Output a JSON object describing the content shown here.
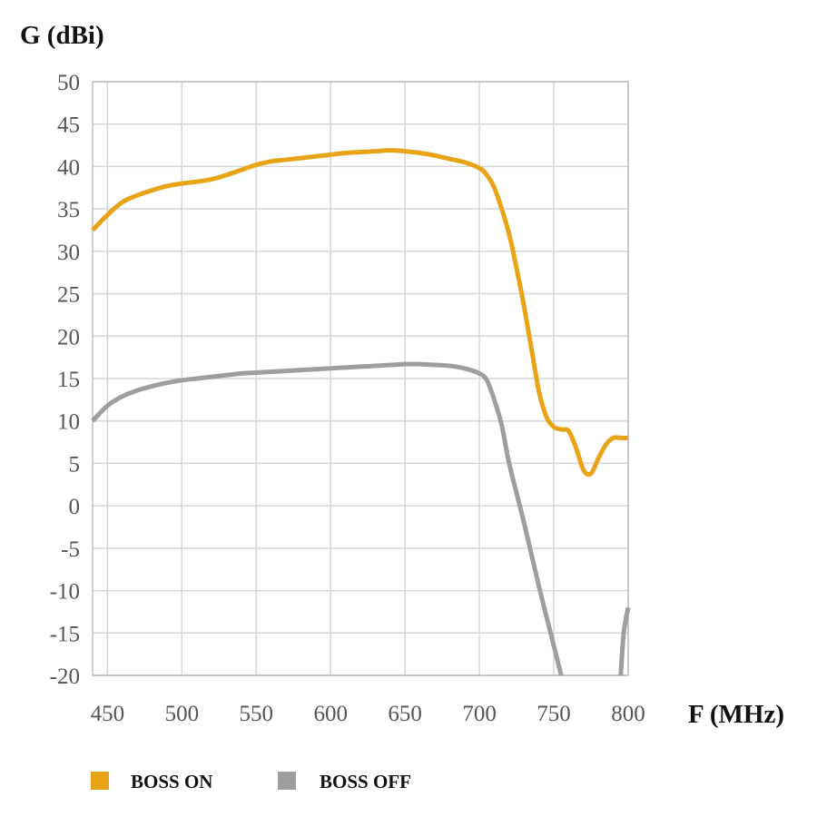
{
  "chart_data": {
    "type": "line",
    "title": "",
    "ylabel": "G (dBi)",
    "xlabel": "F (MHz)",
    "xlim": [
      440,
      800
    ],
    "ylim": [
      -20,
      50
    ],
    "x_ticks": [
      "450",
      "500",
      "550",
      "600",
      "650",
      "700",
      "750",
      "800"
    ],
    "y_ticks": [
      "50",
      "45",
      "40",
      "35",
      "30",
      "25",
      "20",
      "15",
      "10",
      "5",
      "0",
      "-5",
      "-10",
      "-15",
      "-20"
    ],
    "grid": true,
    "legend_position": "bottom",
    "series": [
      {
        "name": "BOSS ON",
        "color": "#E8A317",
        "x": [
          440,
          450,
          460,
          470,
          480,
          490,
          500,
          510,
          520,
          530,
          540,
          550,
          560,
          570,
          580,
          590,
          600,
          610,
          620,
          630,
          640,
          650,
          660,
          670,
          680,
          690,
          700,
          705,
          710,
          715,
          720,
          725,
          730,
          735,
          740,
          745,
          750,
          755,
          760,
          765,
          770,
          775,
          780,
          785,
          790,
          795,
          800
        ],
        "y": [
          32.5,
          34.3,
          35.8,
          36.6,
          37.2,
          37.7,
          38.0,
          38.2,
          38.5,
          39.0,
          39.6,
          40.2,
          40.6,
          40.8,
          41.0,
          41.2,
          41.4,
          41.6,
          41.7,
          41.8,
          41.9,
          41.8,
          41.6,
          41.3,
          40.9,
          40.5,
          39.8,
          39.0,
          37.5,
          35.0,
          32.0,
          28.0,
          23.5,
          18.5,
          13.5,
          10.5,
          9.3,
          9.0,
          8.8,
          6.8,
          4.2,
          3.8,
          5.6,
          7.2,
          8.0,
          8.0,
          8.0
        ],
        "x_start": 440,
        "x_end": 800
      },
      {
        "name": "BOSS OFF",
        "color": "#9E9E9E",
        "x": [
          440,
          450,
          460,
          470,
          480,
          490,
          500,
          510,
          520,
          530,
          540,
          550,
          560,
          570,
          580,
          590,
          600,
          610,
          620,
          630,
          640,
          650,
          660,
          670,
          680,
          690,
          700,
          705,
          710,
          715,
          720,
          730,
          740,
          750,
          755,
          795,
          797,
          800
        ],
        "y": [
          10.0,
          11.8,
          12.9,
          13.6,
          14.1,
          14.5,
          14.8,
          15.0,
          15.2,
          15.4,
          15.6,
          15.7,
          15.8,
          15.9,
          16.0,
          16.1,
          16.2,
          16.3,
          16.4,
          16.5,
          16.6,
          16.7,
          16.7,
          16.6,
          16.5,
          16.2,
          15.6,
          14.8,
          12.5,
          9.5,
          5.0,
          -2.0,
          -9.5,
          -16.5,
          -20.0,
          -20.0,
          -15.0,
          -12.0
        ],
        "gap_after_x": 755
      }
    ]
  },
  "legend": {
    "items": [
      {
        "label": "BOSS ON",
        "color": "#E8A317"
      },
      {
        "label": "BOSS OFF",
        "color": "#9E9E9E"
      }
    ]
  }
}
